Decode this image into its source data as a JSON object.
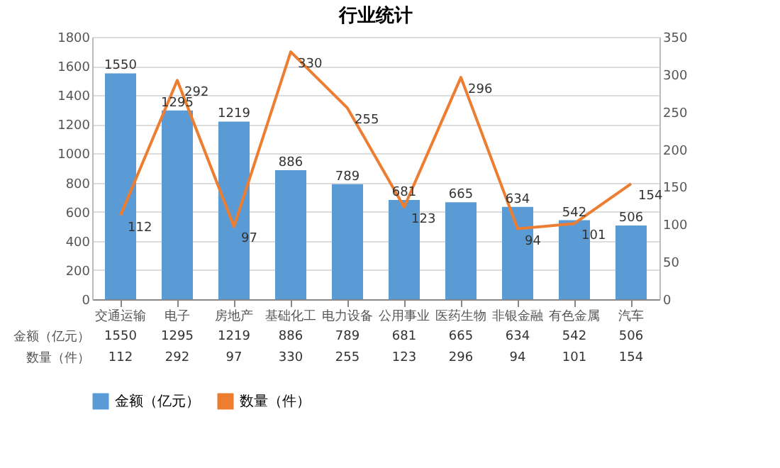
{
  "chart_data": {
    "type": "bar",
    "title": "行业统计",
    "categories": [
      "交通运输",
      "电子",
      "房地产",
      "基础化工",
      "电力设备",
      "公用事业",
      "医药生物",
      "非银金融",
      "有色金属",
      "汽车"
    ],
    "series": [
      {
        "name": "金额（亿元）",
        "color": "#5b9bd5",
        "values": [
          1550,
          1295,
          1219,
          886,
          789,
          681,
          665,
          634,
          542,
          506
        ],
        "value_labels": [
          "1550",
          "1295",
          "1219",
          "886",
          "789",
          "681",
          "665",
          "634",
          "542",
          "506"
        ]
      },
      {
        "name": "数量（件）",
        "type": "line",
        "axis": "y2",
        "color": "#ed7d31",
        "values": [
          112,
          292,
          97,
          330,
          255,
          123,
          296,
          94,
          101,
          154
        ],
        "value_labels": [
          "112",
          "292",
          "97",
          "330",
          "255",
          "123",
          "296",
          "94",
          "101",
          "154"
        ]
      }
    ],
    "ylim": [
      0,
      1800
    ],
    "yticks": [
      0,
      200,
      400,
      600,
      800,
      1000,
      1200,
      1400,
      1600,
      1800
    ],
    "y2lim": [
      0,
      350
    ],
    "y2ticks": [
      0,
      50,
      100,
      150,
      200,
      250,
      300,
      350
    ],
    "grid": "y",
    "legend": "bottom",
    "data_labels": true
  }
}
